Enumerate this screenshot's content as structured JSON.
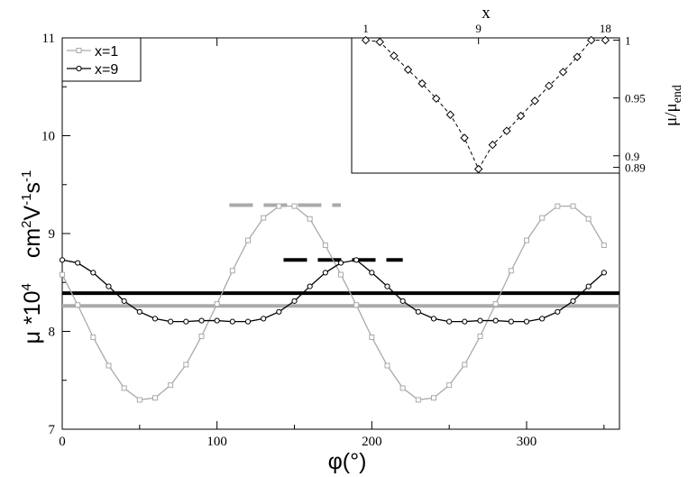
{
  "chart_data": [
    {
      "type": "line",
      "xlabel": "φ(°)",
      "ylabel": "μ *10⁴  cm²V⁻¹s⁻¹",
      "ylabel_parts": {
        "main": "μ *10",
        "main_sup": "4",
        "unit": "cm",
        "unit_sup1": "2",
        "unit_v": "V",
        "unit_sup2": "-1",
        "unit_s": "s",
        "unit_sup3": "-1"
      },
      "xlim": [
        0,
        360
      ],
      "ylim": [
        7,
        11
      ],
      "xticks": [
        0,
        100,
        200,
        300
      ],
      "yticks": [
        7,
        8,
        9,
        10,
        11
      ],
      "legend": {
        "placement": "top-left",
        "entries": [
          "x=1",
          "x=9"
        ]
      },
      "colors": {
        "x1": "#aaaaaa",
        "x9": "#000000"
      },
      "series": [
        {
          "name": "x=1",
          "marker": "square",
          "x": [
            0,
            10,
            20,
            30,
            40,
            50,
            60,
            70,
            80,
            90,
            100,
            110,
            120,
            130,
            140,
            150,
            160,
            170,
            180,
            190,
            200,
            210,
            220,
            230,
            240,
            250,
            260,
            270,
            280,
            290,
            300,
            310,
            320,
            330,
            340,
            350
          ],
          "y": [
            8.58,
            8.27,
            7.94,
            7.65,
            7.42,
            7.3,
            7.32,
            7.45,
            7.66,
            7.95,
            8.28,
            8.62,
            8.93,
            9.16,
            9.28,
            9.28,
            9.15,
            8.88,
            8.58,
            8.27,
            7.94,
            7.65,
            7.42,
            7.3,
            7.32,
            7.45,
            7.66,
            7.95,
            8.28,
            8.62,
            8.93,
            9.16,
            9.28,
            9.28,
            9.15,
            8.88
          ]
        },
        {
          "name": "x=9",
          "marker": "circle",
          "x": [
            0,
            10,
            20,
            30,
            40,
            50,
            60,
            70,
            80,
            90,
            100,
            110,
            120,
            130,
            140,
            150,
            160,
            170,
            180,
            190,
            200,
            210,
            220,
            230,
            240,
            250,
            260,
            270,
            280,
            290,
            300,
            310,
            320,
            330,
            340,
            350
          ],
          "y": [
            8.73,
            8.7,
            8.6,
            8.46,
            8.31,
            8.2,
            8.13,
            8.1,
            8.1,
            8.11,
            8.11,
            8.1,
            8.1,
            8.13,
            8.2,
            8.31,
            8.46,
            8.6,
            8.7,
            8.73,
            8.6,
            8.46,
            8.31,
            8.2,
            8.13,
            8.1,
            8.1,
            8.11,
            8.11,
            8.1,
            8.1,
            8.13,
            8.2,
            8.31,
            8.46,
            8.6
          ]
        }
      ],
      "reference_lines": [
        {
          "series": "x=1",
          "style": "solid",
          "y": 8.26,
          "x_range": [
            0,
            360
          ]
        },
        {
          "series": "x=9",
          "style": "solid",
          "y": 8.39,
          "x_range": [
            0,
            360
          ]
        },
        {
          "series": "x=1",
          "style": "dashed",
          "y": 9.29,
          "x_range": [
            108,
            180
          ]
        },
        {
          "series": "x=9",
          "style": "dashed",
          "y": 8.73,
          "x_range": [
            143,
            220
          ]
        }
      ]
    },
    {
      "type": "line",
      "xlabel": "x",
      "ylabel": "μ/μend",
      "ylabel_parts": {
        "main": "μ/μ",
        "sub": "end"
      },
      "xlim": [
        0,
        19
      ],
      "ylim": [
        0.885,
        1.002
      ],
      "xticks": [
        1,
        9,
        18
      ],
      "yticks": [
        0.89,
        0.9,
        0.95,
        1
      ],
      "ytick_labels": [
        "0.89",
        "0.9",
        "0.95",
        "1"
      ],
      "series": [
        {
          "marker": "diamond",
          "style": "dashed",
          "x": [
            1,
            2,
            3,
            4,
            5,
            6,
            7,
            8,
            9,
            10,
            11,
            12,
            13,
            14,
            15,
            16,
            17,
            18
          ],
          "y": [
            1.0,
            0.9985,
            0.9865,
            0.9745,
            0.9625,
            0.9495,
            0.9355,
            0.9155,
            0.8885,
            0.9095,
            0.9215,
            0.9345,
            0.9475,
            0.9605,
            0.9725,
            0.9855,
            1.0,
            1.0
          ]
        }
      ]
    }
  ]
}
